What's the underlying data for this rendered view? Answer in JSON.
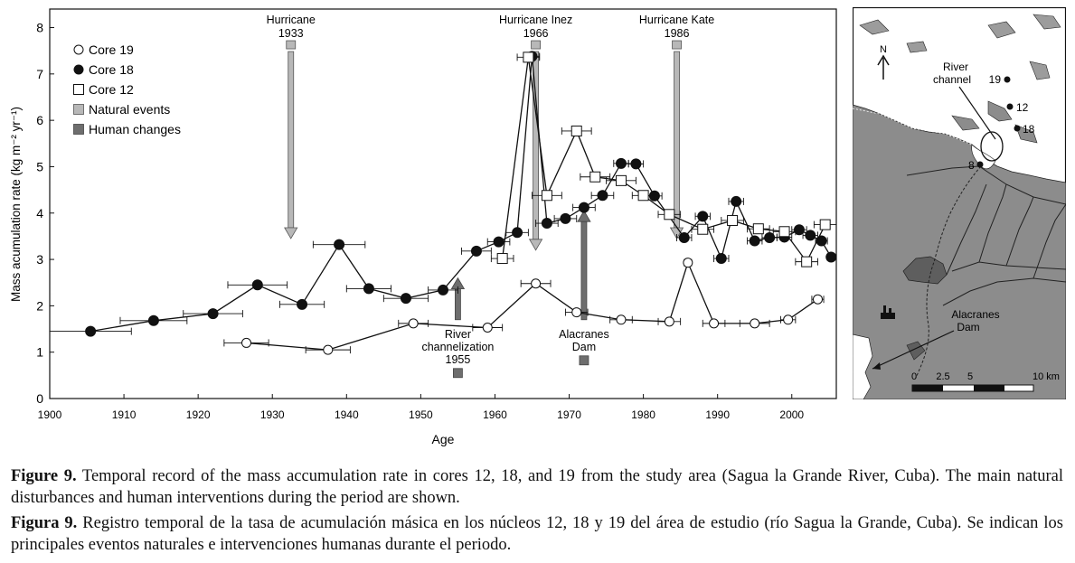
{
  "chart_data": {
    "type": "scatter",
    "xlabel": "Age",
    "ylabel": "Mass acumulation rate (kg m⁻² yr⁻¹)",
    "xlim": [
      1900,
      2006
    ],
    "ylim": [
      0,
      8.4
    ],
    "xticks": [
      1900,
      1910,
      1920,
      1930,
      1940,
      1950,
      1960,
      1970,
      1980,
      1990,
      2000
    ],
    "yticks": [
      0,
      1,
      2,
      3,
      4,
      5,
      6,
      7,
      8
    ],
    "grid": false,
    "legend_position": "top-left",
    "legend": [
      "Core 19",
      "Core 18",
      "Core 12",
      "Natural events",
      "Human changes"
    ],
    "series": [
      {
        "name": "Core 19",
        "marker": "open-circle",
        "points": [
          {
            "x": 1926.5,
            "y": 1.2,
            "xerr": 3
          },
          {
            "x": 1937.5,
            "y": 1.05,
            "xerr": 3
          },
          {
            "x": 1949,
            "y": 1.62,
            "xerr": 2
          },
          {
            "x": 1959,
            "y": 1.53,
            "xerr": 2
          },
          {
            "x": 1965.5,
            "y": 2.48,
            "xerr": 2
          },
          {
            "x": 1971,
            "y": 1.86,
            "xerr": 1.5
          },
          {
            "x": 1977,
            "y": 1.7,
            "xerr": 1.5
          },
          {
            "x": 1983.5,
            "y": 1.66,
            "xerr": 1.5
          },
          {
            "x": 1986,
            "y": 2.93,
            "xerr": 0.5
          },
          {
            "x": 1989.5,
            "y": 1.62,
            "xerr": 1.5
          },
          {
            "x": 1995,
            "y": 1.62,
            "xerr": 2
          },
          {
            "x": 1999.5,
            "y": 1.7,
            "xerr": 1
          },
          {
            "x": 2003.5,
            "y": 2.14,
            "xerr": 0.8
          }
        ]
      },
      {
        "name": "Core 18",
        "marker": "filled-circle",
        "points": [
          {
            "x": 1905.5,
            "y": 1.45,
            "xerr": 5.5
          },
          {
            "x": 1914,
            "y": 1.68,
            "xerr": 4.5
          },
          {
            "x": 1922,
            "y": 1.83,
            "xerr": 4
          },
          {
            "x": 1928,
            "y": 2.45,
            "xerr": 4
          },
          {
            "x": 1934,
            "y": 2.03,
            "xerr": 3
          },
          {
            "x": 1939,
            "y": 3.32,
            "xerr": 3.5
          },
          {
            "x": 1943,
            "y": 2.37,
            "xerr": 3
          },
          {
            "x": 1948,
            "y": 2.16,
            "xerr": 3
          },
          {
            "x": 1953,
            "y": 2.34,
            "xerr": 2
          },
          {
            "x": 1957.5,
            "y": 3.18,
            "xerr": 2
          },
          {
            "x": 1960.5,
            "y": 3.38,
            "xerr": 1.5
          },
          {
            "x": 1963,
            "y": 3.58,
            "xerr": 1.5
          },
          {
            "x": 1965,
            "y": 7.38,
            "xerr": 1
          },
          {
            "x": 1967,
            "y": 3.78,
            "xerr": 1.5
          },
          {
            "x": 1969.5,
            "y": 3.88,
            "xerr": 1.5
          },
          {
            "x": 1972,
            "y": 4.12,
            "xerr": 1.5
          },
          {
            "x": 1974.5,
            "y": 4.38,
            "xerr": 1.5
          },
          {
            "x": 1977,
            "y": 5.07,
            "xerr": 1
          },
          {
            "x": 1979,
            "y": 5.06,
            "xerr": 1
          },
          {
            "x": 1981.5,
            "y": 4.37,
            "xerr": 1
          },
          {
            "x": 1985.5,
            "y": 3.47,
            "xerr": 1
          },
          {
            "x": 1988,
            "y": 3.93,
            "xerr": 1
          },
          {
            "x": 1990.5,
            "y": 3.02,
            "xerr": 1
          },
          {
            "x": 1992.5,
            "y": 4.25,
            "xerr": 1
          },
          {
            "x": 1995,
            "y": 3.4,
            "xerr": 1
          },
          {
            "x": 1997,
            "y": 3.47,
            "xerr": 1
          },
          {
            "x": 1999,
            "y": 3.48,
            "xerr": 1
          },
          {
            "x": 2001,
            "y": 3.64,
            "xerr": 1
          },
          {
            "x": 2002.5,
            "y": 3.52,
            "xerr": 1
          },
          {
            "x": 2004,
            "y": 3.4,
            "xerr": 0.8
          },
          {
            "x": 2005.3,
            "y": 3.05,
            "xerr": 0.5
          }
        ]
      },
      {
        "name": "Core 12",
        "marker": "open-square",
        "points": [
          {
            "x": 1961,
            "y": 3.02,
            "xerr": 1.5
          },
          {
            "x": 1964.5,
            "y": 7.36,
            "xerr": 1.5
          },
          {
            "x": 1967,
            "y": 4.38,
            "xerr": 2
          },
          {
            "x": 1971,
            "y": 5.77,
            "xerr": 2
          },
          {
            "x": 1973.5,
            "y": 4.78,
            "xerr": 2
          },
          {
            "x": 1977,
            "y": 4.7,
            "xerr": 2
          },
          {
            "x": 1980,
            "y": 4.38,
            "xerr": 1.5
          },
          {
            "x": 1983.5,
            "y": 3.97,
            "xerr": 1.5
          },
          {
            "x": 1988,
            "y": 3.65,
            "xerr": 1.5
          },
          {
            "x": 1992,
            "y": 3.84,
            "xerr": 1.5
          },
          {
            "x": 1995.5,
            "y": 3.66,
            "xerr": 1.5
          },
          {
            "x": 1999,
            "y": 3.6,
            "xerr": 1.5
          },
          {
            "x": 2002,
            "y": 2.95,
            "xerr": 1.5
          },
          {
            "x": 2004.5,
            "y": 3.75,
            "xerr": 1.5
          }
        ]
      }
    ],
    "events": [
      {
        "kind": "natural",
        "label_lines": [
          "Hurricane",
          "1933"
        ],
        "x": 1932.5,
        "from_y": 7.6,
        "to_y": 3.45,
        "direction": "down"
      },
      {
        "kind": "natural",
        "label_lines": [
          "Hurricane Inez",
          "1966"
        ],
        "x": 1965.5,
        "from_y": 7.6,
        "to_y": 3.2,
        "direction": "down"
      },
      {
        "kind": "natural",
        "label_lines": [
          "Hurricane Kate",
          "1986"
        ],
        "x": 1984.5,
        "from_y": 7.6,
        "to_y": 3.45,
        "direction": "down"
      },
      {
        "kind": "human",
        "label_lines": [
          "River",
          "channelization",
          "1955"
        ],
        "x": 1955,
        "from_y": 1.7,
        "to_y": 2.6,
        "direction": "up"
      },
      {
        "kind": "human",
        "label_lines": [
          "Alacranes",
          "Dam"
        ],
        "x": 1972,
        "from_y": 1.7,
        "to_y": 4.05,
        "direction": "up"
      }
    ]
  },
  "map": {
    "north_label": "N",
    "river_channel_label_lines": [
      "River",
      "channel"
    ],
    "dam_label_lines": [
      "Alacranes",
      "Dam"
    ],
    "core_labels": [
      "19",
      "12",
      "18",
      "8"
    ],
    "scale_labels": [
      "0",
      "2.5",
      "5",
      "10 km"
    ]
  },
  "caption_en": {
    "lead": "Figure 9.",
    "text": " Temporal record of the mass accumulation rate in cores 12, 18, and 19 from the study area (Sagua la Grande River, Cuba). The main natural disturbances and human interventions during the period are shown."
  },
  "caption_es": {
    "lead": "Figura 9.",
    "text": " Registro temporal de la tasa de acumulación másica en los núcleos 12, 18 y 19 del área de estudio (río Sagua la Grande, Cuba). Se indican los principales eventos naturales e intervenciones humanas durante el periodo."
  },
  "colors": {
    "natural": "#b8b8b8",
    "human": "#6e6e6e",
    "ink": "#111111",
    "land": "#8c8c8c",
    "sea": "#ffffff"
  }
}
